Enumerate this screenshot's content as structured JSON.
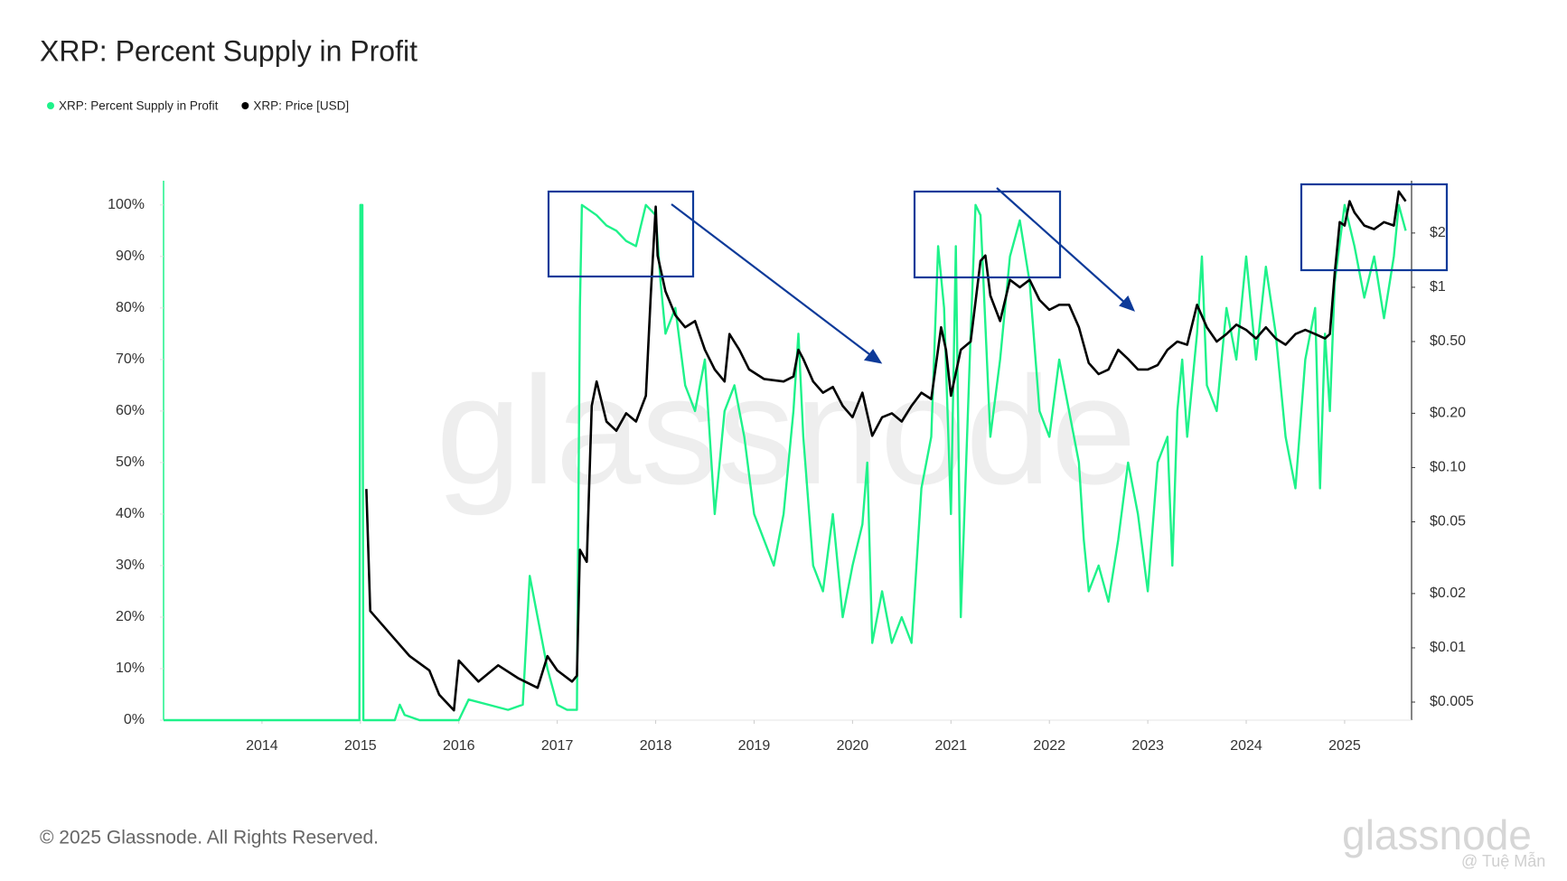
{
  "chart_data": {
    "type": "line",
    "title": "XRP: Percent Supply in Profit",
    "watermark": "glassnode",
    "footer": "© 2025 Glassnode. All Rights Reserved.",
    "logo": "glassnode",
    "credit": "@ Tuệ Mẫn",
    "grid": false,
    "y2_log": true,
    "xlim": [
      2013.0,
      2025.68
    ],
    "xticks": [
      2014,
      2015,
      2016,
      2017,
      2018,
      2019,
      2020,
      2021,
      2022,
      2023,
      2024,
      2025
    ],
    "ylim": [
      0,
      104.7
    ],
    "yticks": [
      {
        "value": 0,
        "label": "0%"
      },
      {
        "value": 10,
        "label": "10%"
      },
      {
        "value": 20,
        "label": "20%"
      },
      {
        "value": 30,
        "label": "30%"
      },
      {
        "value": 40,
        "label": "40%"
      },
      {
        "value": 50,
        "label": "50%"
      },
      {
        "value": 60,
        "label": "60%"
      },
      {
        "value": 70,
        "label": "70%"
      },
      {
        "value": 80,
        "label": "80%"
      },
      {
        "value": 90,
        "label": "90%"
      },
      {
        "value": 100,
        "label": "100%"
      }
    ],
    "y2lim": [
      0.00397,
      3.9
    ],
    "y2ticks": [
      {
        "value": 0.005,
        "label": "$0.005"
      },
      {
        "value": 0.01,
        "label": "$0.01"
      },
      {
        "value": 0.02,
        "label": "$0.02"
      },
      {
        "value": 0.05,
        "label": "$0.05"
      },
      {
        "value": 0.1,
        "label": "$0.10"
      },
      {
        "value": 0.2,
        "label": "$0.20"
      },
      {
        "value": 0.5,
        "label": "$0.50"
      },
      {
        "value": 1,
        "label": "$1"
      },
      {
        "value": 2,
        "label": "$2"
      }
    ],
    "series": [
      {
        "name": "XRP: Percent Supply in Profit",
        "color": "#1ef28a",
        "axis": "y",
        "x": [
          2013.0,
          2014.99,
          2015.0,
          2015.02,
          2015.03,
          2015.35,
          2015.4,
          2015.45,
          2015.6,
          2016.0,
          2016.1,
          2016.3,
          2016.5,
          2016.65,
          2016.72,
          2016.8,
          2016.9,
          2017.0,
          2017.1,
          2017.2,
          2017.23,
          2017.25,
          2017.4,
          2017.5,
          2017.6,
          2017.7,
          2017.8,
          2017.9,
          2018.0,
          2018.05,
          2018.1,
          2018.2,
          2018.3,
          2018.4,
          2018.5,
          2018.6,
          2018.7,
          2018.8,
          2018.9,
          2019.0,
          2019.1,
          2019.2,
          2019.3,
          2019.4,
          2019.45,
          2019.5,
          2019.6,
          2019.7,
          2019.8,
          2019.9,
          2020.0,
          2020.1,
          2020.15,
          2020.2,
          2020.3,
          2020.4,
          2020.5,
          2020.6,
          2020.7,
          2020.8,
          2020.87,
          2020.93,
          2021.0,
          2021.05,
          2021.1,
          2021.2,
          2021.25,
          2021.3,
          2021.4,
          2021.5,
          2021.6,
          2021.7,
          2021.8,
          2021.9,
          2022.0,
          2022.1,
          2022.2,
          2022.3,
          2022.35,
          2022.4,
          2022.5,
          2022.6,
          2022.7,
          2022.8,
          2022.9,
          2023.0,
          2023.1,
          2023.2,
          2023.25,
          2023.3,
          2023.35,
          2023.4,
          2023.5,
          2023.55,
          2023.6,
          2023.7,
          2023.8,
          2023.9,
          2024.0,
          2024.1,
          2024.2,
          2024.3,
          2024.4,
          2024.5,
          2024.6,
          2024.7,
          2024.75,
          2024.8,
          2024.85,
          2024.9,
          2025.0,
          2025.1,
          2025.2,
          2025.3,
          2025.4,
          2025.5,
          2025.55,
          2025.62
        ],
        "values": [
          0,
          0,
          100,
          100,
          0,
          0,
          3,
          1,
          0,
          0,
          4,
          3,
          2,
          3,
          28,
          20,
          10,
          3,
          2,
          2,
          80,
          100,
          98,
          96,
          95,
          93,
          92,
          100,
          98,
          85,
          75,
          80,
          65,
          60,
          70,
          40,
          60,
          65,
          55,
          40,
          35,
          30,
          40,
          60,
          75,
          55,
          30,
          25,
          40,
          20,
          30,
          38,
          50,
          15,
          25,
          15,
          20,
          15,
          45,
          55,
          92,
          80,
          40,
          92,
          20,
          75,
          100,
          98,
          55,
          70,
          90,
          97,
          85,
          60,
          55,
          70,
          60,
          50,
          35,
          25,
          30,
          23,
          35,
          50,
          40,
          25,
          50,
          55,
          30,
          60,
          70,
          55,
          75,
          90,
          65,
          60,
          80,
          70,
          90,
          70,
          88,
          75,
          55,
          45,
          70,
          80,
          45,
          75,
          60,
          85,
          100,
          92,
          82,
          90,
          78,
          90,
          100,
          95
        ]
      },
      {
        "name": "XRP: Price [USD]",
        "color": "#000000",
        "axis": "y2",
        "x": [
          2015.06,
          2015.1,
          2015.3,
          2015.5,
          2015.7,
          2015.8,
          2015.95,
          2016.0,
          2016.2,
          2016.4,
          2016.6,
          2016.8,
          2016.9,
          2017.0,
          2017.15,
          2017.2,
          2017.23,
          2017.3,
          2017.35,
          2017.4,
          2017.5,
          2017.6,
          2017.7,
          2017.8,
          2017.9,
          2017.95,
          2018.0,
          2018.02,
          2018.1,
          2018.2,
          2018.3,
          2018.4,
          2018.5,
          2018.6,
          2018.7,
          2018.75,
          2018.85,
          2018.95,
          2019.1,
          2019.3,
          2019.4,
          2019.45,
          2019.5,
          2019.6,
          2019.7,
          2019.8,
          2019.9,
          2020.0,
          2020.1,
          2020.2,
          2020.3,
          2020.4,
          2020.5,
          2020.6,
          2020.7,
          2020.8,
          2020.9,
          2020.95,
          2021.0,
          2021.1,
          2021.2,
          2021.3,
          2021.35,
          2021.4,
          2021.5,
          2021.6,
          2021.7,
          2021.8,
          2021.9,
          2022.0,
          2022.1,
          2022.2,
          2022.3,
          2022.4,
          2022.5,
          2022.6,
          2022.7,
          2022.8,
          2022.9,
          2023.0,
          2023.1,
          2023.2,
          2023.3,
          2023.4,
          2023.5,
          2023.6,
          2023.7,
          2023.8,
          2023.9,
          2024.0,
          2024.1,
          2024.2,
          2024.3,
          2024.4,
          2024.5,
          2024.6,
          2024.7,
          2024.8,
          2024.85,
          2024.9,
          2024.95,
          2025.0,
          2025.05,
          2025.1,
          2025.2,
          2025.3,
          2025.4,
          2025.5,
          2025.55,
          2025.62
        ],
        "values": [
          0.076,
          0.016,
          0.012,
          0.009,
          0.0075,
          0.0055,
          0.0045,
          0.0085,
          0.0065,
          0.008,
          0.0068,
          0.006,
          0.009,
          0.0075,
          0.0065,
          0.007,
          0.035,
          0.03,
          0.22,
          0.3,
          0.18,
          0.16,
          0.2,
          0.18,
          0.25,
          0.9,
          2.8,
          1.5,
          0.95,
          0.7,
          0.6,
          0.65,
          0.45,
          0.35,
          0.3,
          0.55,
          0.45,
          0.35,
          0.31,
          0.3,
          0.32,
          0.45,
          0.4,
          0.3,
          0.26,
          0.28,
          0.22,
          0.19,
          0.26,
          0.15,
          0.19,
          0.2,
          0.18,
          0.22,
          0.26,
          0.24,
          0.6,
          0.45,
          0.25,
          0.45,
          0.5,
          1.4,
          1.5,
          0.9,
          0.65,
          1.1,
          1.0,
          1.1,
          0.85,
          0.75,
          0.8,
          0.8,
          0.6,
          0.38,
          0.33,
          0.35,
          0.45,
          0.4,
          0.35,
          0.35,
          0.37,
          0.45,
          0.5,
          0.48,
          0.8,
          0.6,
          0.5,
          0.55,
          0.62,
          0.58,
          0.52,
          0.6,
          0.52,
          0.48,
          0.55,
          0.58,
          0.55,
          0.52,
          0.55,
          1.2,
          2.3,
          2.2,
          3.0,
          2.6,
          2.2,
          2.1,
          2.3,
          2.2,
          3.4,
          3.0
        ]
      }
    ]
  }
}
